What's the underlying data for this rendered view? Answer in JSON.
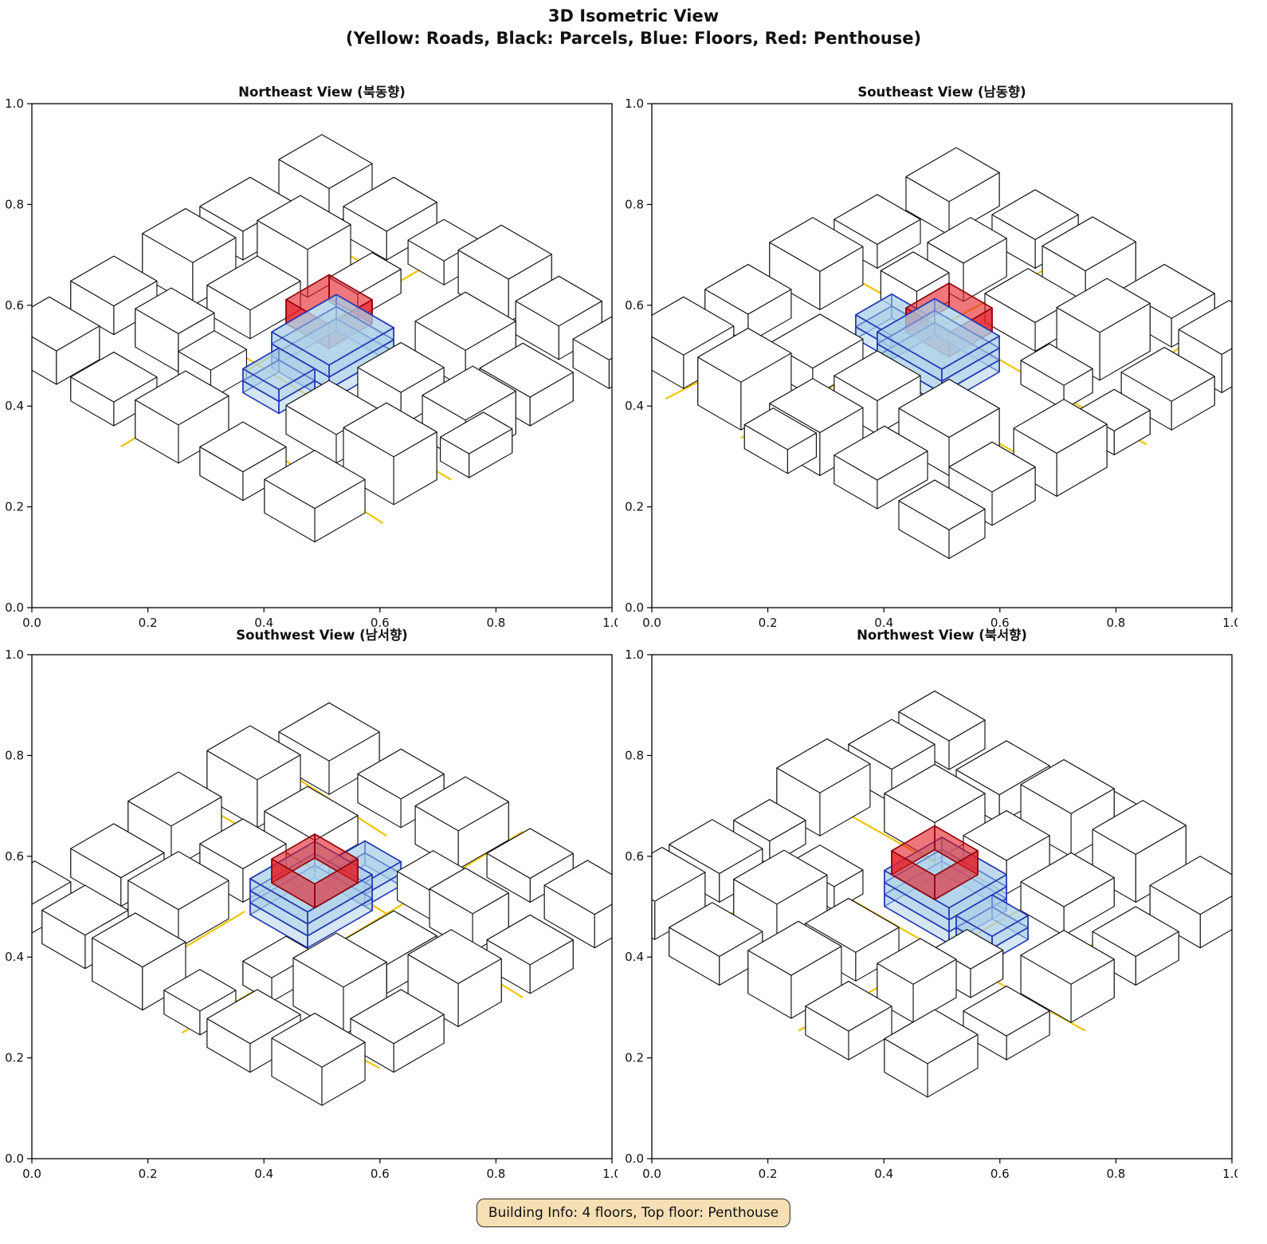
{
  "figure": {
    "title_line1": "3D Isometric View",
    "title_line2": "(Yellow: Roads, Black: Parcels, Blue: Floors, Red: Penthouse)"
  },
  "legend": {
    "yellow": "Roads",
    "black": "Parcels",
    "blue": "Floors",
    "red": "Penthouse"
  },
  "views": [
    {
      "id": "ne",
      "title": "Northeast View (북동향)",
      "azimuth": 0
    },
    {
      "id": "se",
      "title": "Southeast View (남동향)",
      "azimuth": 90
    },
    {
      "id": "sw",
      "title": "Southwest View (남서향)",
      "azimuth": 180
    },
    {
      "id": "nw",
      "title": "Northwest View (북서향)",
      "azimuth": 270
    }
  ],
  "axes": {
    "x_ticks": [
      "0.0",
      "0.2",
      "0.4",
      "0.6",
      "0.8",
      "1.0"
    ],
    "y_ticks": [
      "0.0",
      "0.2",
      "0.4",
      "0.6",
      "0.8",
      "1.0"
    ]
  },
  "colors": {
    "road": "#F0C400",
    "parcel_fill": "#FFFFFF",
    "parcel_edge": "#111111",
    "floor_fill": "#A9CFE8",
    "floor_edge": "#2438B4",
    "penthouse_fill": "#E41B23",
    "penthouse_edge": "#8F0008",
    "badge_bg": "#F6DFB4",
    "badge_border": "#2B2B2B"
  },
  "scene": {
    "roads": [
      [
        [
          0.41,
          0.02
        ],
        [
          0.41,
          0.5
        ],
        [
          0.42,
          0.98
        ]
      ],
      [
        [
          0.02,
          0.58
        ],
        [
          0.5,
          0.595
        ],
        [
          0.96,
          0.6
        ]
      ],
      [
        [
          0.61,
          0.02
        ],
        [
          0.615,
          0.4
        ]
      ],
      [
        [
          0.05,
          0.21
        ],
        [
          0.3,
          0.2
        ]
      ],
      [
        [
          0.6,
          0.78
        ],
        [
          0.97,
          0.8
        ]
      ]
    ],
    "buildings": [
      [
        0.04,
        0.04,
        0.14,
        0.12,
        0.16
      ],
      [
        0.22,
        0.02,
        0.12,
        0.14,
        0.12
      ],
      [
        0.38,
        0.04,
        0.1,
        0.1,
        0.1
      ],
      [
        0.52,
        0.02,
        0.14,
        0.12,
        0.18
      ],
      [
        0.7,
        0.04,
        0.12,
        0.12,
        0.14
      ],
      [
        0.86,
        0.02,
        0.1,
        0.14,
        0.12
      ],
      [
        0.02,
        0.22,
        0.12,
        0.14,
        0.12
      ],
      [
        0.18,
        0.24,
        0.14,
        0.12,
        0.2
      ],
      [
        0.36,
        0.22,
        0.08,
        0.12,
        0.1
      ],
      [
        0.62,
        0.22,
        0.14,
        0.14,
        0.16
      ],
      [
        0.8,
        0.24,
        0.14,
        0.12,
        0.12
      ],
      [
        0.04,
        0.42,
        0.14,
        0.12,
        0.18
      ],
      [
        0.22,
        0.4,
        0.12,
        0.14,
        0.12
      ],
      [
        0.64,
        0.42,
        0.12,
        0.12,
        0.14
      ],
      [
        0.82,
        0.4,
        0.12,
        0.14,
        0.18
      ],
      [
        0.02,
        0.6,
        0.12,
        0.12,
        0.12
      ],
      [
        0.2,
        0.62,
        0.12,
        0.1,
        0.16
      ],
      [
        0.34,
        0.64,
        0.09,
        0.1,
        0.12
      ],
      [
        0.62,
        0.6,
        0.14,
        0.12,
        0.12
      ],
      [
        0.8,
        0.62,
        0.14,
        0.12,
        0.2
      ],
      [
        0.04,
        0.8,
        0.14,
        0.12,
        0.14
      ],
      [
        0.24,
        0.82,
        0.12,
        0.12,
        0.1
      ],
      [
        0.42,
        0.8,
        0.12,
        0.14,
        0.16
      ],
      [
        0.6,
        0.82,
        0.12,
        0.12,
        0.12
      ],
      [
        0.78,
        0.8,
        0.14,
        0.14,
        0.14
      ],
      [
        0.9,
        0.45,
        0.08,
        0.12,
        0.1
      ]
    ],
    "subject": {
      "floors": [
        [
          0.44,
          0.4,
          0.16,
          0.18,
          0.0,
          0.05
        ],
        [
          0.44,
          0.4,
          0.16,
          0.18,
          0.05,
          0.1
        ],
        [
          0.44,
          0.4,
          0.16,
          0.18,
          0.1,
          0.15
        ],
        [
          0.46,
          0.58,
          0.1,
          0.1,
          0.0,
          0.05
        ],
        [
          0.46,
          0.58,
          0.1,
          0.1,
          0.05,
          0.1
        ]
      ],
      "penthouse": [
        0.44,
        0.42,
        0.12,
        0.12,
        0.15,
        0.25
      ]
    }
  },
  "footer": {
    "building_info": "Building Info: 4 floors, Top floor: Penthouse"
  }
}
